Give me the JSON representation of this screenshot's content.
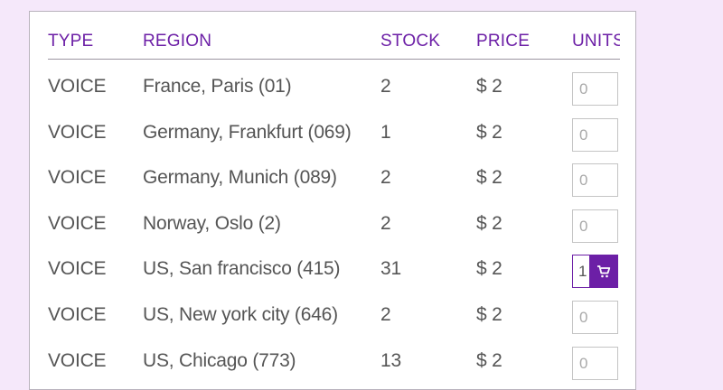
{
  "table": {
    "headers": {
      "type": "TYPE",
      "region": "REGION",
      "stock": "STOCK",
      "price": "PRICE",
      "units": "UNITS"
    },
    "rows": [
      {
        "type": "VOICE",
        "region": "France, Paris (01)",
        "stock": "2",
        "price": "$ 2",
        "units": "0",
        "active": false
      },
      {
        "type": "VOICE",
        "region": "Germany, Frankfurt (069)",
        "stock": "1",
        "price": "$ 2",
        "units": "0",
        "active": false
      },
      {
        "type": "VOICE",
        "region": "Germany, Munich (089)",
        "stock": "2",
        "price": "$ 2",
        "units": "0",
        "active": false
      },
      {
        "type": "VOICE",
        "region": "Norway, Oslo (2)",
        "stock": "2",
        "price": "$ 2",
        "units": "0",
        "active": false
      },
      {
        "type": "VOICE",
        "region": "US, San francisco (415)",
        "stock": "31",
        "price": "$ 2",
        "units": "1",
        "active": true
      },
      {
        "type": "VOICE",
        "region": "US, New york city (646)",
        "stock": "2",
        "price": "$ 2",
        "units": "0",
        "active": false
      },
      {
        "type": "VOICE",
        "region": "US, Chicago (773)",
        "stock": "13",
        "price": "$ 2",
        "units": "0",
        "active": false
      }
    ]
  },
  "icons": {
    "cart": "shopping-cart-icon"
  },
  "colors": {
    "accent": "#6c1fa6",
    "page_background": "#f5e8fa",
    "text": "#555555"
  }
}
